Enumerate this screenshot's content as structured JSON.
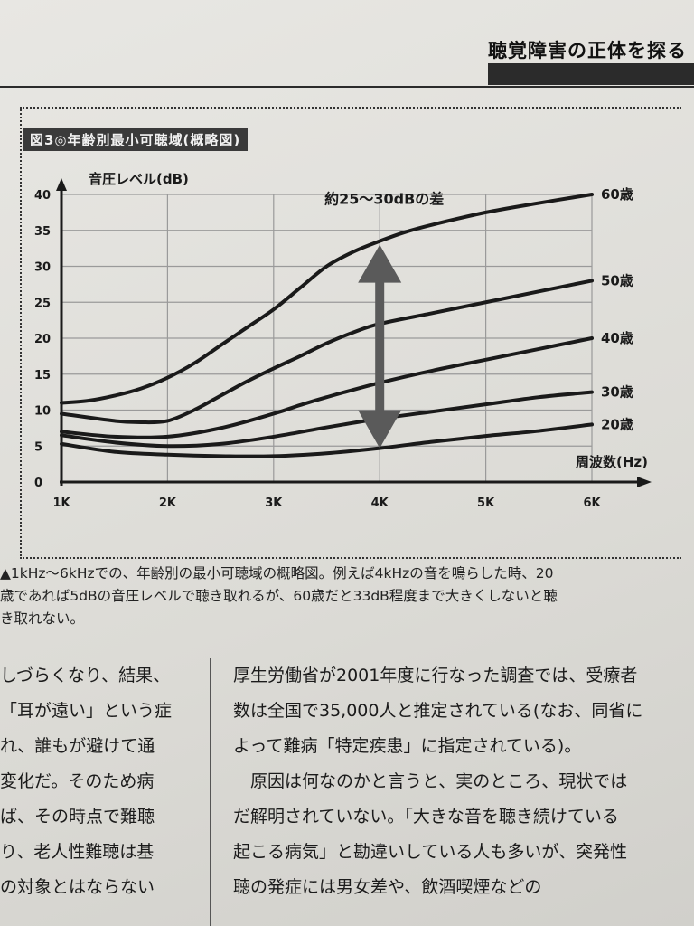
{
  "header": {
    "title": "聴覚障害の正体を探る"
  },
  "figure": {
    "title": "図3◎年齢別最小可聴域(概略図)"
  },
  "chart_data": {
    "type": "line",
    "title": "図3◎年齢別最小可聴域(概略図)",
    "ylabel": "音圧レベル(dB)",
    "xlabel": "周波数(Hz)",
    "ylim": [
      0,
      40
    ],
    "xlim": [
      1,
      6
    ],
    "yticks": [
      "0",
      "5",
      "10",
      "15",
      "20",
      "25",
      "30",
      "35",
      "40"
    ],
    "xticks": [
      "1K",
      "2K",
      "3K",
      "4K",
      "5K",
      "6K"
    ],
    "grid": true,
    "series": [
      {
        "name": "60歳",
        "x": [
          1,
          1.25,
          1.5,
          1.75,
          2,
          2.25,
          2.5,
          2.75,
          3,
          3.25,
          3.5,
          3.75,
          4,
          4.25,
          4.5,
          5,
          5.5,
          6
        ],
        "y": [
          11,
          11.3,
          12,
          13,
          14.5,
          16.5,
          19,
          21.5,
          24,
          27,
          30,
          32,
          33.5,
          34.8,
          35.8,
          37.5,
          38.8,
          40
        ]
      },
      {
        "name": "50歳",
        "x": [
          1,
          1.5,
          1.75,
          2,
          2.25,
          2.5,
          2.75,
          3,
          3.25,
          3.5,
          3.75,
          4,
          4.5,
          5,
          5.5,
          6
        ],
        "y": [
          9.5,
          8.5,
          8.3,
          8.5,
          10,
          12,
          14,
          15.8,
          17.5,
          19.3,
          20.8,
          22,
          23.5,
          25,
          26.5,
          28
        ]
      },
      {
        "name": "40歳",
        "x": [
          1,
          1.5,
          2,
          2.5,
          3,
          3.25,
          3.5,
          4,
          4.5,
          5,
          5.5,
          6
        ],
        "y": [
          7,
          6.3,
          6.3,
          7.5,
          9.5,
          10.7,
          11.8,
          13.8,
          15.5,
          17,
          18.5,
          20
        ]
      },
      {
        "name": "30歳",
        "x": [
          1,
          1.5,
          2,
          2.5,
          3,
          3.5,
          4,
          4.5,
          5,
          5.5,
          6
        ],
        "y": [
          6.5,
          5.5,
          5,
          5.3,
          6.3,
          7.6,
          8.8,
          9.8,
          10.8,
          11.8,
          12.5
        ]
      },
      {
        "name": "20歳",
        "x": [
          1,
          1.5,
          2,
          2.5,
          3,
          3.5,
          4,
          4.5,
          5,
          5.5,
          6
        ],
        "y": [
          5.3,
          4.2,
          3.8,
          3.6,
          3.6,
          4,
          4.7,
          5.6,
          6.4,
          7.1,
          8
        ]
      }
    ],
    "annotation": {
      "text": "約25～30dBの差",
      "x": 4,
      "y_from": 4.7,
      "y_to": 33
    },
    "colors": {
      "line": "#1a1a1a",
      "arrow": "#5a5a5a",
      "grid": "#9a9a9a"
    }
  },
  "caption": {
    "lines": [
      "▲1kHz～6kHzでの、年齢別の最小可聴域の概略図。例えば4kHzの音を鳴らした時、20",
      "歳であれば5dBの音圧レベルで聴き取れるが、60歳だと33dB程度まで大きくしないと聴",
      "き取れない。"
    ]
  },
  "body_left": {
    "lines": [
      "しづらくなり、結果、",
      "「耳が遠い」という症",
      "れ、誰もが避けて通",
      "変化だ。そのため病",
      "ば、その時点で難聴",
      "り、老人性難聴は基",
      "の対象とはならない"
    ]
  },
  "body_right": {
    "lines": [
      "厚生労働省が2001年度に行なった調査では、受療者",
      "数は全国で35,000人と推定されている(なお、同省に",
      "よって難病「特定疾患」に指定されている)。",
      "　原因は何なのかと言うと、実のところ、現状では",
      "だ解明されていない。「大きな音を聴き続けている",
      "起こる病気」と勘違いしている人も多いが、突発性",
      "聴の発症には男女差や、飲酒喫煙などの"
    ]
  }
}
